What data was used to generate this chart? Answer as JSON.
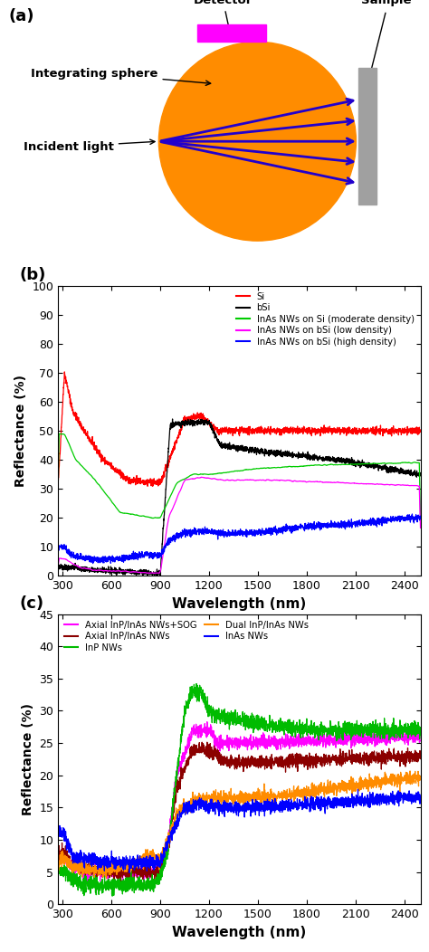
{
  "panel_a": {
    "label": "(a)",
    "sphere_color": "#FF8C00",
    "detector_color": "#FF00FF",
    "sample_color": "#A0A0A0",
    "arrow_color": "#2200CC"
  },
  "panel_b": {
    "label": "(b)",
    "ylabel": "Reflectance (%)",
    "xlabel": "Wavelength (nm)",
    "ylim": [
      0,
      100
    ],
    "yticks": [
      0,
      10,
      20,
      30,
      40,
      50,
      60,
      70,
      80,
      90,
      100
    ],
    "xticks": [
      300,
      600,
      900,
      1200,
      1500,
      1800,
      2100,
      2400
    ],
    "xlim": [
      270,
      2500
    ],
    "legend_entries": [
      {
        "label": "Si",
        "color": "#FF0000"
      },
      {
        "label": "bSi",
        "color": "#000000"
      },
      {
        "label": "InAs NWs on Si (moderate density)",
        "color": "#00CC00"
      },
      {
        "label": "InAs NWs on bSi (low density)",
        "color": "#FF00FF"
      },
      {
        "label": "InAs NWs on bSi (high density)",
        "color": "#0000FF"
      }
    ]
  },
  "panel_c": {
    "label": "(c)",
    "ylabel": "Reflectance (%)",
    "xlabel": "Wavelength (nm)",
    "ylim": [
      0,
      45
    ],
    "yticks": [
      0,
      5,
      10,
      15,
      20,
      25,
      30,
      35,
      40,
      45
    ],
    "xticks": [
      300,
      600,
      900,
      1200,
      1500,
      1800,
      2100,
      2400
    ],
    "xlim": [
      270,
      2500
    ],
    "legend_entries": [
      {
        "label": "Axial InP/InAs NWs+SOG",
        "color": "#FF00FF"
      },
      {
        "label": "Axial InP/InAs NWs",
        "color": "#8B0000"
      },
      {
        "label": "InP NWs",
        "color": "#00BB00"
      },
      {
        "label": "Dual InP/InAs NWs",
        "color": "#FF8C00"
      },
      {
        "label": "InAs NWs",
        "color": "#0000FF"
      }
    ]
  }
}
